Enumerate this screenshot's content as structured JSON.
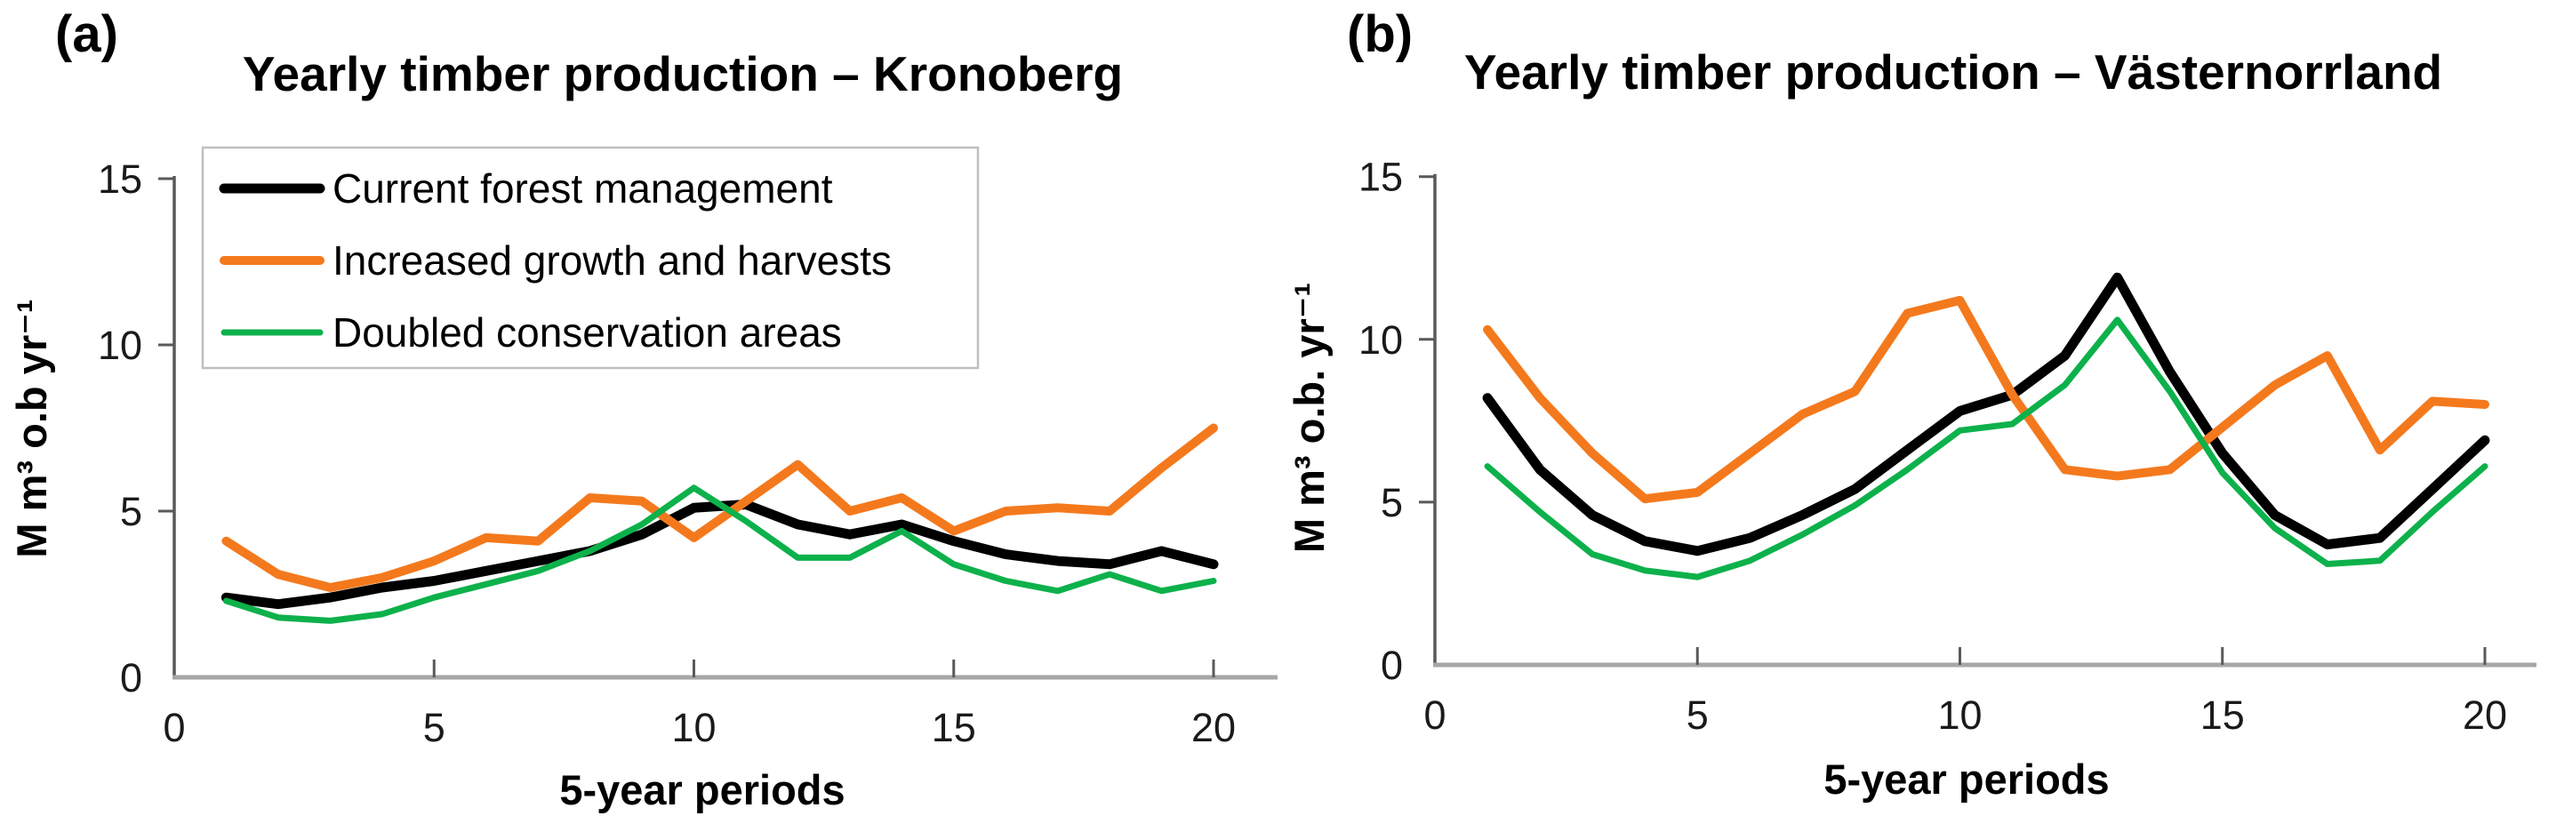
{
  "panels": [
    {
      "label": "(a)",
      "title": "Yearly timber production – Kronoberg",
      "ylabel": "M m³ o.b yr⁻¹",
      "xlabel": "5-year periods",
      "legend_visible": true
    },
    {
      "label": "(b)",
      "title": "Yearly timber production – Västernorrland",
      "ylabel": "M m³ o.b. yr⁻¹",
      "xlabel": "5-year periods",
      "legend_visible": false
    }
  ],
  "colors": {
    "current": "#000000",
    "increased": "#F4791D",
    "doubled": "#0DB14B",
    "y_axis_line": "#595959",
    "x_axis_line": "#A6A6A6",
    "legend_border": "#BFBFBF",
    "background": "#ffffff"
  },
  "chart_data": [
    {
      "type": "line",
      "title": "Yearly timber production – Kronoberg",
      "xlabel": "5-year periods",
      "ylabel": "M m³ o.b yr⁻¹",
      "x": [
        1,
        2,
        3,
        4,
        5,
        6,
        7,
        8,
        9,
        10,
        11,
        12,
        13,
        14,
        15,
        16,
        17,
        18,
        19,
        20
      ],
      "xlim": [
        0,
        20.6
      ],
      "ylim": [
        0,
        15
      ],
      "xticks": [
        0,
        5,
        10,
        15,
        20
      ],
      "yticks": [
        0,
        5,
        10,
        15
      ],
      "grid": false,
      "legend_position": "top-left",
      "series": [
        {
          "name": "Current forest management",
          "color": "#000000",
          "stroke_width": 11,
          "values": [
            2.4,
            2.2,
            2.4,
            2.7,
            2.9,
            3.2,
            3.5,
            3.8,
            4.3,
            5.1,
            5.2,
            4.6,
            4.3,
            4.6,
            4.1,
            3.7,
            3.5,
            3.4,
            3.8,
            3.4
          ]
        },
        {
          "name": "Increased growth and harvests",
          "color": "#F4791D",
          "stroke_width": 10,
          "values": [
            4.1,
            3.1,
            2.7,
            3.0,
            3.5,
            4.2,
            4.1,
            5.4,
            5.3,
            4.2,
            5.3,
            6.4,
            5.0,
            5.4,
            4.4,
            5.0,
            5.1,
            5.0,
            6.3,
            7.5
          ]
        },
        {
          "name": "Doubled conservation areas",
          "color": "#0DB14B",
          "stroke_width": 7,
          "values": [
            2.3,
            1.8,
            1.7,
            1.9,
            2.4,
            2.8,
            3.2,
            3.8,
            4.6,
            5.7,
            4.7,
            3.6,
            3.6,
            4.4,
            3.4,
            2.9,
            2.6,
            3.1,
            2.6,
            2.9
          ]
        }
      ]
    },
    {
      "type": "line",
      "title": "Yearly timber production – Västernorrland",
      "xlabel": "5-year periods",
      "ylabel": "M m³ o.b. yr⁻¹",
      "x": [
        1,
        2,
        3,
        4,
        5,
        6,
        7,
        8,
        9,
        10,
        11,
        12,
        13,
        14,
        15,
        16,
        17,
        18,
        19,
        20
      ],
      "xlim": [
        0,
        20.6
      ],
      "ylim": [
        0,
        15
      ],
      "xticks": [
        0,
        5,
        10,
        15,
        20
      ],
      "yticks": [
        0,
        5,
        10,
        15
      ],
      "grid": false,
      "legend_position": "none",
      "series": [
        {
          "name": "Current forest management",
          "color": "#000000",
          "stroke_width": 11,
          "values": [
            8.2,
            6.0,
            4.6,
            3.8,
            3.5,
            3.9,
            4.6,
            5.4,
            6.6,
            7.8,
            8.3,
            9.5,
            11.9,
            9.0,
            6.5,
            4.6,
            3.7,
            3.9,
            5.4,
            6.9
          ]
        },
        {
          "name": "Increased growth and harvests",
          "color": "#F4791D",
          "stroke_width": 10,
          "values": [
            10.3,
            8.2,
            6.5,
            5.1,
            5.3,
            6.5,
            7.7,
            8.4,
            10.8,
            11.2,
            8.3,
            6.0,
            5.8,
            6.0,
            7.3,
            8.6,
            9.5,
            6.6,
            8.1,
            8.0
          ]
        },
        {
          "name": "Doubled conservation areas",
          "color": "#0DB14B",
          "stroke_width": 7,
          "values": [
            6.1,
            4.7,
            3.4,
            2.9,
            2.7,
            3.2,
            4.0,
            4.9,
            6.0,
            7.2,
            7.4,
            8.6,
            10.6,
            8.4,
            5.9,
            4.2,
            3.1,
            3.2,
            4.7,
            6.1
          ]
        }
      ]
    }
  ]
}
